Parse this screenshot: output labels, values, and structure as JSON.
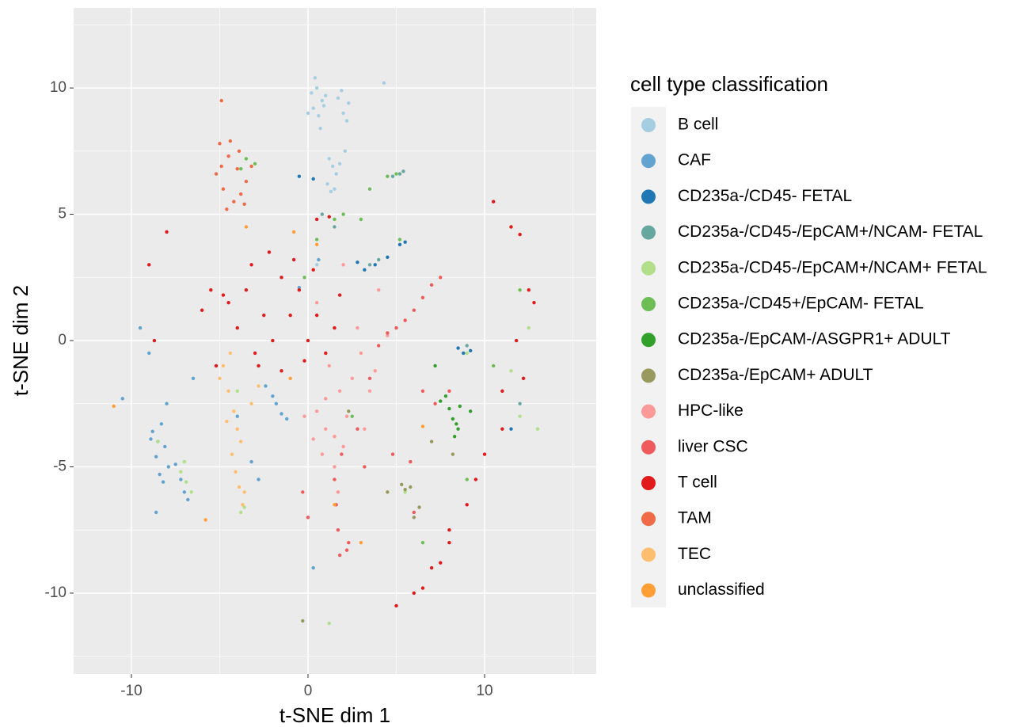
{
  "chart_data": {
    "type": "scatter",
    "x_label": "t-SNE dim 1",
    "y_label": "t-SNE dim 2",
    "legend_title": "cell type classification",
    "xlim": [
      -13.27,
      16.32
    ],
    "ylim": [
      -13.2,
      13.17
    ],
    "xticks": [
      -10,
      0,
      10
    ],
    "yticks": [
      -10,
      -5,
      0,
      5,
      10
    ],
    "grid": true,
    "legend": "right",
    "series": [
      {
        "name": "B cell",
        "color": "#a6cee3",
        "x": [
          0.2,
          0.5,
          0.8,
          0.3,
          0.6,
          1.0,
          0.4,
          0.9,
          1.9,
          2.0,
          2.2,
          1.7,
          1.2,
          1.4,
          1.6,
          1.8,
          1.1,
          1.5,
          2.3,
          0.0,
          0.7,
          4.3,
          2.1,
          1.3,
          0.5
        ],
        "y": [
          9.8,
          10.0,
          9.5,
          9.2,
          8.9,
          9.7,
          10.4,
          9.3,
          9.9,
          9.0,
          8.7,
          9.6,
          7.2,
          6.9,
          6.6,
          7.0,
          6.2,
          6.0,
          9.4,
          9.0,
          8.4,
          10.2,
          7.5,
          5.9,
          3.0
        ]
      },
      {
        "name": "CAF",
        "color": "#62a3d0",
        "x": [
          -8.8,
          -8.5,
          -8.3,
          -8.6,
          -8.1,
          -8.9,
          -8.4,
          -7.9,
          -8.2,
          -7.5,
          -7.2,
          -6.8,
          -1.8,
          -1.5,
          -2.0,
          -1.2,
          -2.4,
          -9.5,
          -10.5,
          -8.0,
          -6.5,
          -4.0,
          -3.2,
          0.6,
          -0.5,
          -7.0,
          -8.6,
          -2.8,
          0.3,
          -9.0
        ],
        "y": [
          -3.6,
          -4.0,
          -3.3,
          -4.6,
          -4.2,
          -3.9,
          -5.3,
          -5.0,
          -5.6,
          -4.9,
          -5.5,
          -6.3,
          -2.5,
          -2.9,
          -2.2,
          -3.1,
          -1.8,
          0.5,
          -2.3,
          -2.5,
          -1.5,
          -3.0,
          -4.8,
          3.2,
          2.1,
          -6.0,
          -6.8,
          -5.5,
          -9.0,
          -0.5
        ]
      },
      {
        "name": "CD235a-/CD45- FETAL",
        "color": "#1f78b4",
        "x": [
          5.2,
          5.5,
          4.5,
          3.8,
          3.2,
          8.5,
          9.2,
          8.8,
          0.3,
          -0.5,
          2.8,
          11.5
        ],
        "y": [
          3.8,
          3.9,
          3.3,
          3.0,
          2.8,
          -0.3,
          -0.4,
          -0.5,
          6.4,
          6.5,
          3.1,
          -3.5
        ]
      },
      {
        "name": "CD235a-/CD45-/EpCAM+/NCAM- FETAL",
        "color": "#66a8a0",
        "x": [
          5.2,
          5.4,
          4.8,
          3.5,
          4.0,
          0.8,
          1.5,
          12.0,
          9.0
        ],
        "y": [
          6.6,
          6.7,
          6.5,
          3.0,
          3.2,
          5.0,
          4.5,
          -2.5,
          -0.2
        ]
      },
      {
        "name": "CD235a-/CD45-/EpCAM+/NCAM+ FETAL",
        "color": "#b2df8a",
        "x": [
          -7.2,
          -6.9,
          -6.6,
          -7.0,
          -3.8,
          -3.6,
          9.0,
          11.5,
          12.5,
          1.2,
          -8.5,
          5.5,
          12.0,
          -4.0,
          13.0
        ],
        "y": [
          -5.2,
          -5.6,
          -6.0,
          -4.8,
          -6.8,
          -6.6,
          -0.5,
          -1.2,
          0.5,
          -11.2,
          -4.0,
          -6.0,
          -3.0,
          -2.0,
          -3.5
        ]
      },
      {
        "name": "CD235a-/CD45+/EpCAM- FETAL",
        "color": "#6dbe57",
        "x": [
          4.5,
          5.0,
          3.5,
          2.0,
          1.5,
          -3.5,
          -3.0,
          -3.8,
          3.0,
          5.2,
          12.0,
          10.5,
          11.5,
          0.5,
          -0.2,
          2.5,
          9.0,
          6.5
        ],
        "y": [
          6.5,
          6.6,
          6.0,
          5.0,
          4.8,
          7.2,
          7.0,
          6.8,
          4.8,
          4.0,
          2.0,
          -1.0,
          4.5,
          4.0,
          2.5,
          -3.0,
          -5.5,
          -8.0
        ]
      },
      {
        "name": "CD235a-/EpCAM-/ASGPR1+ ADULT",
        "color": "#33a02c",
        "x": [
          7.5,
          8.0,
          8.2,
          8.5,
          9.2,
          8.3,
          7.8,
          8.6,
          8.4,
          7.2
        ],
        "y": [
          -2.4,
          -2.7,
          -3.1,
          -3.5,
          -2.8,
          -3.8,
          -2.2,
          -2.6,
          -3.3,
          -1.0
        ]
      },
      {
        "name": "CD235a-/EpCAM+ ADULT",
        "color": "#98995e",
        "x": [
          5.3,
          5.5,
          5.8,
          4.5,
          7.0,
          6.0,
          6.3,
          2.3,
          -0.3,
          8.2
        ],
        "y": [
          -5.7,
          -5.9,
          -5.8,
          -6.0,
          -4.0,
          -7.0,
          -6.6,
          -2.8,
          -11.1,
          -4.5
        ]
      },
      {
        "name": "HPC-like",
        "color": "#fb9a99",
        "x": [
          1.0,
          1.5,
          2.0,
          0.5,
          1.8,
          2.5,
          3.0,
          1.2,
          0.8,
          2.2,
          3.5,
          4.0,
          1.5,
          0.3,
          2.8,
          -0.2,
          1.0,
          4.5,
          3.8,
          0.5,
          2.0,
          3.2,
          1.7
        ],
        "y": [
          -3.5,
          -3.8,
          -4.2,
          -2.8,
          -2.0,
          -1.5,
          -0.5,
          -1.0,
          -4.5,
          -3.0,
          -2.0,
          2.0,
          -5.0,
          -3.9,
          0.5,
          -3.0,
          -2.3,
          0.2,
          -1.2,
          1.5,
          3.0,
          -3.5,
          -6.0
        ]
      },
      {
        "name": "liver CSC",
        "color": "#ef5a5c",
        "x": [
          1.5,
          1.6,
          1.7,
          1.8,
          1.9,
          2.3,
          2.2,
          5.0,
          5.5,
          6.0,
          6.5,
          7.0,
          7.5,
          4.0,
          4.5,
          3.5,
          6.5,
          7.2,
          3.2,
          0.0,
          -0.3,
          2.8,
          4.8,
          5.8,
          6.0,
          8.0
        ],
        "y": [
          -5.5,
          -6.5,
          -7.5,
          -8.5,
          -4.5,
          -8.0,
          -8.3,
          0.5,
          0.8,
          1.2,
          1.7,
          2.2,
          2.5,
          -0.2,
          0.3,
          -1.5,
          -2.0,
          -2.5,
          -5.0,
          -7.0,
          -6.0,
          -3.5,
          -4.5,
          -4.8,
          -6.8,
          -2.0
        ]
      },
      {
        "name": "T cell",
        "color": "#e31a1c",
        "x": [
          -4.5,
          -3.5,
          -2.5,
          -1.5,
          -0.5,
          0.5,
          1.5,
          -4.0,
          -3.0,
          -2.0,
          -1.0,
          0.0,
          1.0,
          -5.5,
          -4.8,
          -3.2,
          -2.2,
          -0.8,
          0.3,
          1.8,
          -2.8,
          -1.5,
          -0.2,
          -6.0,
          -8.0,
          -9.0,
          0.5,
          1.2,
          12.0,
          12.5,
          11.8,
          11.0,
          10.0,
          9.0,
          8.0,
          7.5,
          6.5,
          5.0,
          10.5,
          11.5,
          12.8,
          12.2,
          11.0,
          9.5,
          8.0,
          7.0,
          6.0,
          -5.2,
          -8.7
        ],
        "y": [
          1.5,
          2.0,
          1.0,
          2.5,
          2.0,
          1.0,
          0.5,
          0.5,
          -0.5,
          0.0,
          1.0,
          0.0,
          -0.5,
          2.0,
          1.8,
          3.0,
          3.5,
          3.2,
          2.8,
          1.8,
          -1.0,
          -1.2,
          -0.8,
          1.2,
          4.3,
          3.0,
          4.8,
          4.9,
          4.2,
          2.0,
          0.0,
          -2.0,
          -4.5,
          -6.5,
          -8.0,
          -8.8,
          -9.8,
          -10.5,
          5.5,
          4.5,
          1.5,
          -1.5,
          -3.5,
          -5.5,
          -7.5,
          -9.0,
          -10.0,
          -1.0,
          0.0
        ]
      },
      {
        "name": "TAM",
        "color": "#ef6a46",
        "x": [
          -5.0,
          -4.5,
          -4.0,
          -3.5,
          -4.8,
          -4.2,
          -3.8,
          -5.2,
          -4.4,
          -3.2,
          -4.6,
          -3.9,
          -4.9,
          -3.6,
          -4.9
        ],
        "y": [
          7.8,
          7.3,
          6.8,
          6.3,
          6.0,
          5.5,
          5.8,
          6.6,
          7.9,
          6.9,
          5.2,
          7.5,
          6.9,
          5.4,
          9.5
        ]
      },
      {
        "name": "TEC",
        "color": "#fdbf6f",
        "x": [
          -4.8,
          -4.5,
          -4.2,
          -4.0,
          -3.8,
          -4.3,
          -4.6,
          -4.1,
          -3.9,
          -3.7,
          -5.0,
          -3.2,
          -2.8,
          -4.4,
          -3.6
        ],
        "y": [
          -1.0,
          -2.0,
          -2.8,
          -3.5,
          -4.0,
          -4.5,
          -3.2,
          -5.2,
          -5.8,
          -6.5,
          -1.5,
          -2.5,
          -1.8,
          -0.5,
          -6.0
        ]
      },
      {
        "name": "unclassified",
        "color": "#ff9f36",
        "x": [
          -11.0,
          -1.0,
          -0.8,
          6.5,
          1.5,
          3.0,
          -5.8,
          -3.5,
          0.5
        ],
        "y": [
          -2.6,
          -1.5,
          4.3,
          -3.4,
          -6.5,
          -8.0,
          -7.1,
          4.5,
          3.8
        ]
      }
    ]
  }
}
